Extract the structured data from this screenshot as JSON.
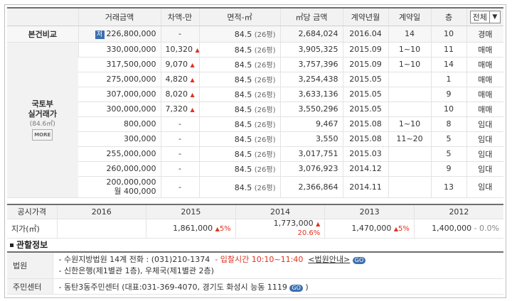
{
  "headers": {
    "price": "거래금액",
    "diff": "차액-만",
    "area": "면적-㎡",
    "perm2": "㎡당 금액",
    "ym": "계약년월",
    "day": "계약일",
    "floor": "층",
    "filter": "전체"
  },
  "compare": {
    "label": "본건비교",
    "tag": "저",
    "price": "226,800,000",
    "diff": "-",
    "area": "84.5",
    "py": "(26평)",
    "perm2": "2,684,024",
    "ym": "2016.04",
    "day": "14",
    "floor": "10",
    "type": "경매"
  },
  "molit": {
    "l1": "국토부",
    "l2": "실거래가",
    "l3": "(84.6㎡)",
    "more": "MORE"
  },
  "rows": [
    {
      "price": "330,000,000",
      "diff": "10,320",
      "up": true,
      "area": "84.5",
      "py": "(26평)",
      "perm2": "3,905,325",
      "ym": "2015.09",
      "day": "1~10",
      "floor": "11",
      "type": "매매"
    },
    {
      "price": "317,500,000",
      "diff": "9,070",
      "up": true,
      "area": "84.5",
      "py": "(26평)",
      "perm2": "3,757,396",
      "ym": "2015.09",
      "day": "1~10",
      "floor": "14",
      "type": "매매"
    },
    {
      "price": "275,000,000",
      "diff": "4,820",
      "up": true,
      "area": "84.5",
      "py": "(26평)",
      "perm2": "3,254,438",
      "ym": "2015.05",
      "day": "",
      "floor": "1",
      "type": "매매"
    },
    {
      "price": "307,000,000",
      "diff": "8,020",
      "up": true,
      "area": "84.5",
      "py": "(26평)",
      "perm2": "3,633,136",
      "ym": "2015.05",
      "day": "",
      "floor": "9",
      "type": "매매"
    },
    {
      "price": "300,000,000",
      "diff": "7,320",
      "up": true,
      "area": "84.5",
      "py": "(26평)",
      "perm2": "3,550,296",
      "ym": "2015.05",
      "day": "",
      "floor": "10",
      "type": "매매"
    },
    {
      "price": "800,000",
      "diff": "-",
      "up": false,
      "area": "84.5",
      "py": "(26평)",
      "perm2": "9,467",
      "ym": "2015.08",
      "day": "1~10",
      "floor": "8",
      "type": "임대"
    },
    {
      "price": "300,000",
      "diff": "-",
      "up": false,
      "area": "84.5",
      "py": "(26평)",
      "perm2": "3,550",
      "ym": "2015.08",
      "day": "11~20",
      "floor": "5",
      "type": "임대"
    },
    {
      "price": "255,000,000",
      "diff": "-",
      "up": false,
      "area": "84.5",
      "py": "(26평)",
      "perm2": "3,017,751",
      "ym": "2015.03",
      "day": "",
      "floor": "5",
      "type": "임대"
    },
    {
      "price": "260,000,000",
      "diff": "-",
      "up": false,
      "area": "84.5",
      "py": "(26평)",
      "perm2": "3,076,923",
      "ym": "2014.12",
      "day": "",
      "floor": "9",
      "type": "임대"
    },
    {
      "price": "200,000,000",
      "price2": "월 400,000",
      "diff": "-",
      "up": false,
      "area": "84.5",
      "py": "(26평)",
      "perm2": "2,366,864",
      "ym": "2014.11",
      "day": "",
      "floor": "13",
      "type": "임대"
    }
  ],
  "posted": {
    "label": "공시가격",
    "row_label": "지가(㎡)",
    "years": [
      "2016",
      "2015",
      "2014",
      "2013",
      "2012"
    ],
    "values": [
      {
        "v": "",
        "c": "",
        "dir": ""
      },
      {
        "v": "1,861,000",
        "c": "5%",
        "dir": "up"
      },
      {
        "v": "1,773,000",
        "c": "20.6%",
        "dir": "up"
      },
      {
        "v": "1,470,000",
        "c": "5%",
        "dir": "up"
      },
      {
        "v": "1,400,000",
        "c": "- 0.0%",
        "dir": "flat"
      }
    ]
  },
  "info": {
    "title": "관할정보",
    "court_label": "법원",
    "court_line1_a": "- 수원지방법원 14계 전화 : (031)210-1374",
    "court_line1_b": "- 입찰시간 10:10~11:40",
    "court_link": "<법원안내>",
    "court_line2": "- 신한은행(제1별관 1층), 우체국(제1별관 2층)",
    "center_label": "주민센터",
    "center_line": "- 동탄3동주민센터 (대표:031-369-4070, 경기도 화성시 능동 1119",
    "center_tail": ")",
    "go": "GO"
  }
}
